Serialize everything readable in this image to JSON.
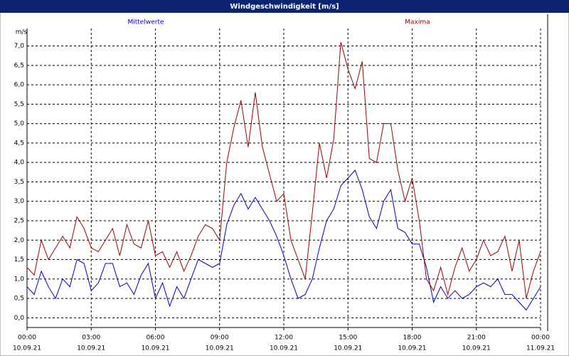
{
  "chart_data": {
    "type": "line",
    "title": "Windgeschwindigkeit [m/s]",
    "y_unit": "m/s",
    "x": [
      0,
      20,
      40,
      60,
      80,
      100,
      120,
      140,
      160,
      180,
      200,
      220,
      240,
      260,
      280,
      300,
      320,
      340,
      360,
      380,
      400,
      420,
      440,
      460,
      480,
      500,
      520,
      540,
      560,
      580,
      600,
      620,
      640,
      660,
      680,
      700,
      720,
      740,
      760,
      780,
      800,
      820,
      840,
      860,
      880,
      900,
      920,
      940,
      960,
      980,
      1000,
      1020,
      1040,
      1060,
      1080,
      1100,
      1120,
      1140,
      1160,
      1180,
      1200,
      1220,
      1240,
      1260,
      1280,
      1300,
      1320,
      1340,
      1360,
      1380,
      1400,
      1420,
      1440
    ],
    "series": [
      {
        "name": "Mittelwerte",
        "color": "#0000c0",
        "values": [
          0.8,
          0.6,
          1.2,
          0.8,
          0.5,
          1.0,
          0.8,
          1.5,
          1.4,
          0.7,
          0.9,
          1.4,
          1.4,
          0.8,
          0.9,
          0.6,
          1.1,
          1.4,
          0.5,
          0.9,
          0.3,
          0.8,
          0.5,
          1.0,
          1.5,
          1.4,
          1.3,
          1.4,
          2.4,
          2.9,
          3.2,
          2.8,
          3.1,
          2.8,
          2.5,
          2.1,
          1.6,
          1.0,
          0.5,
          0.6,
          1.0,
          1.8,
          2.5,
          2.8,
          3.4,
          3.6,
          3.8,
          3.3,
          2.6,
          2.3,
          3.0,
          3.3,
          2.3,
          2.2,
          1.9,
          1.9,
          1.3,
          0.4,
          0.8,
          0.5,
          0.7,
          0.5,
          0.6,
          0.8,
          0.9,
          0.8,
          1.0,
          0.6,
          0.6,
          0.4,
          0.2,
          0.5,
          0.8
        ]
      },
      {
        "name": "Maxima",
        "color": "#a00000",
        "values": [
          1.3,
          1.1,
          2.0,
          1.5,
          1.8,
          2.1,
          1.8,
          2.6,
          2.3,
          1.8,
          1.7,
          2.0,
          2.3,
          1.6,
          2.4,
          1.9,
          1.8,
          2.5,
          1.6,
          1.7,
          1.3,
          1.7,
          1.2,
          1.6,
          2.1,
          2.4,
          2.3,
          2.0,
          4.0,
          4.9,
          5.6,
          4.4,
          5.8,
          4.4,
          3.7,
          3.0,
          3.2,
          2.0,
          1.5,
          1.0,
          2.7,
          4.5,
          3.6,
          4.6,
          7.1,
          6.4,
          5.9,
          6.6,
          4.1,
          4.0,
          5.0,
          5.0,
          3.8,
          3.0,
          3.6,
          2.5,
          1.0,
          0.7,
          1.3,
          0.6,
          1.3,
          1.8,
          1.2,
          1.5,
          2.0,
          1.6,
          1.7,
          2.1,
          1.2,
          2.0,
          0.5,
          1.2,
          1.7
        ]
      }
    ],
    "xlim": [
      0,
      1440
    ],
    "xticks": [
      {
        "value": 0,
        "label": "00:00"
      },
      {
        "value": 180,
        "label": "03:00"
      },
      {
        "value": 360,
        "label": "06:00"
      },
      {
        "value": 540,
        "label": "09:00"
      },
      {
        "value": 720,
        "label": "12:00"
      },
      {
        "value": 900,
        "label": "15:00"
      },
      {
        "value": 1080,
        "label": "18:00"
      },
      {
        "value": 1260,
        "label": "21:00"
      },
      {
        "value": 1440,
        "label": "00:00"
      }
    ],
    "xtick_dates": [
      "10.09.21",
      "10.09.21",
      "10.09.21",
      "10.09.21",
      "10.09.21",
      "10.09.21",
      "10.09.21",
      "10.09.21",
      "11.09.21"
    ],
    "ylim": [
      -0.25,
      7.45
    ],
    "yticks": [
      {
        "value": 0,
        "label": "0,0"
      },
      {
        "value": 0.5,
        "label": "0,5"
      },
      {
        "value": 1,
        "label": "1,0"
      },
      {
        "value": 1.5,
        "label": "1,5"
      },
      {
        "value": 2,
        "label": "2,0"
      },
      {
        "value": 2.5,
        "label": "2,5"
      },
      {
        "value": 3,
        "label": "3,0"
      },
      {
        "value": 3.5,
        "label": "3,5"
      },
      {
        "value": 4,
        "label": "4,0"
      },
      {
        "value": 4.5,
        "label": "4,5"
      },
      {
        "value": 5,
        "label": "5,0"
      },
      {
        "value": 5.5,
        "label": "5,5"
      },
      {
        "value": 6,
        "label": "6,0"
      },
      {
        "value": 6.5,
        "label": "6,5"
      },
      {
        "value": 7,
        "label": "7,0"
      }
    ],
    "grid": true
  }
}
